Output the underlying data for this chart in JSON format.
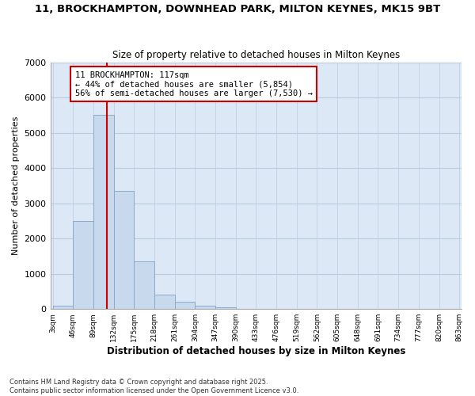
{
  "title_line1": "11, BROCKHAMPTON, DOWNHEAD PARK, MILTON KEYNES, MK15 9BT",
  "title_line2": "Size of property relative to detached houses in Milton Keynes",
  "xlabel": "Distribution of detached houses by size in Milton Keynes",
  "ylabel": "Number of detached properties",
  "bar_edges": [
    3,
    46,
    89,
    132,
    175,
    218,
    261,
    304,
    347,
    390,
    433,
    476,
    519,
    562,
    605,
    648,
    691,
    734,
    777,
    820,
    863
  ],
  "bar_heights": [
    100,
    2500,
    5500,
    3350,
    1350,
    420,
    200,
    100,
    50,
    0,
    0,
    0,
    0,
    0,
    0,
    0,
    0,
    0,
    0,
    0
  ],
  "bar_color": "#c8d8ed",
  "bar_edge_color": "#8aaac8",
  "property_size": 117,
  "annotation_title": "11 BROCKHAMPTON: 117sqm",
  "annotation_line2": "← 44% of detached houses are smaller (5,854)",
  "annotation_line3": "56% of semi-detached houses are larger (7,530) →",
  "annotation_box_color": "#ffffff",
  "annotation_box_edge": "#cc0000",
  "vline_color": "#cc0000",
  "grid_color": "#b8cce0",
  "plot_bg_color": "#dce8f5",
  "fig_bg_color": "#ffffff",
  "footer_line1": "Contains HM Land Registry data © Crown copyright and database right 2025.",
  "footer_line2": "Contains public sector information licensed under the Open Government Licence v3.0.",
  "ylim": [
    0,
    7000
  ],
  "yticks": [
    0,
    1000,
    2000,
    3000,
    4000,
    5000,
    6000,
    7000
  ]
}
